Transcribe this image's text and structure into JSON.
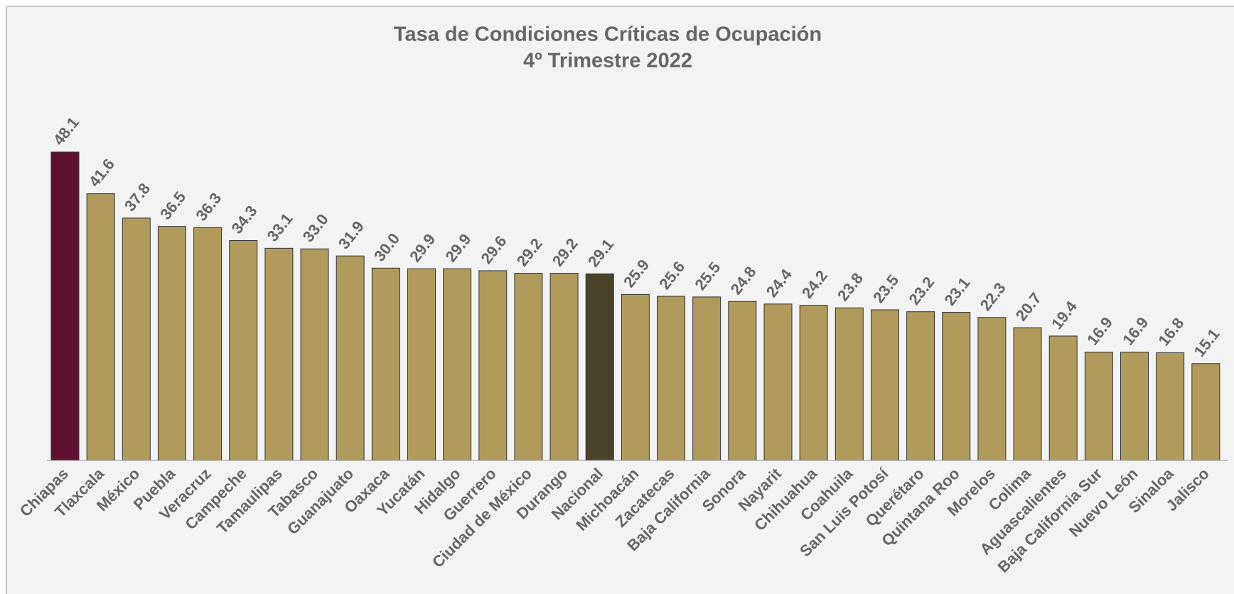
{
  "chart_data": {
    "type": "bar",
    "title": [
      "Tasa de Condiciones Críticas de Ocupación",
      "4º Trimestre 2022"
    ],
    "categories": [
      "Chiapas",
      "Tlaxcala",
      "México",
      "Puebla",
      "Veracruz",
      "Campeche",
      "Tamaulipas",
      "Tabasco",
      "Guanajuato",
      "Oaxaca",
      "Yucatán",
      "Hidalgo",
      "Guerrero",
      "Ciudad de México",
      "Durango",
      "Nacional",
      "Michoacán",
      "Zacatecas",
      "Baja California",
      "Sonora",
      "Nayarit",
      "Chihuahua",
      "Coahuila",
      "San Luis Potosí",
      "Querétaro",
      "Quintana Roo",
      "Morelos",
      "Colima",
      "Aguascalientes",
      "Baja California Sur",
      "Nuevo León",
      "Sinaloa",
      "Jalisco"
    ],
    "values": [
      48.1,
      41.6,
      37.8,
      36.5,
      36.3,
      34.3,
      33.1,
      33.0,
      31.9,
      30.0,
      29.9,
      29.9,
      29.6,
      29.2,
      29.2,
      29.1,
      25.9,
      25.6,
      25.5,
      24.8,
      24.4,
      24.2,
      23.8,
      23.5,
      23.2,
      23.1,
      22.3,
      20.7,
      19.4,
      16.9,
      16.9,
      16.8,
      15.1
    ],
    "value_labels": [
      "48.1",
      "41.6",
      "37.8",
      "36.5",
      "36.3",
      "34.3",
      "33.1",
      "33.0",
      "31.9",
      "30.0",
      "29.9",
      "29.9",
      "29.6",
      "29.2",
      "29.2",
      "29.1",
      "25.9",
      "25.6",
      "25.5",
      "24.8",
      "24.4",
      "24.2",
      "23.8",
      "23.5",
      "23.2",
      "23.1",
      "22.3",
      "20.7",
      "19.4",
      "16.9",
      "16.9",
      "16.8",
      "15.1"
    ],
    "colors": [
      "#5f1030",
      "#b09a5c",
      "#b09a5c",
      "#b09a5c",
      "#b09a5c",
      "#b09a5c",
      "#b09a5c",
      "#b09a5c",
      "#b09a5c",
      "#b09a5c",
      "#b09a5c",
      "#b09a5c",
      "#b09a5c",
      "#b09a5c",
      "#b09a5c",
      "#4a432b",
      "#b09a5c",
      "#b09a5c",
      "#b09a5c",
      "#b09a5c",
      "#b09a5c",
      "#b09a5c",
      "#b09a5c",
      "#b09a5c",
      "#b09a5c",
      "#b09a5c",
      "#b09a5c",
      "#b09a5c",
      "#b09a5c",
      "#b09a5c",
      "#b09a5c",
      "#b09a5c",
      "#b09a5c"
    ]
  }
}
